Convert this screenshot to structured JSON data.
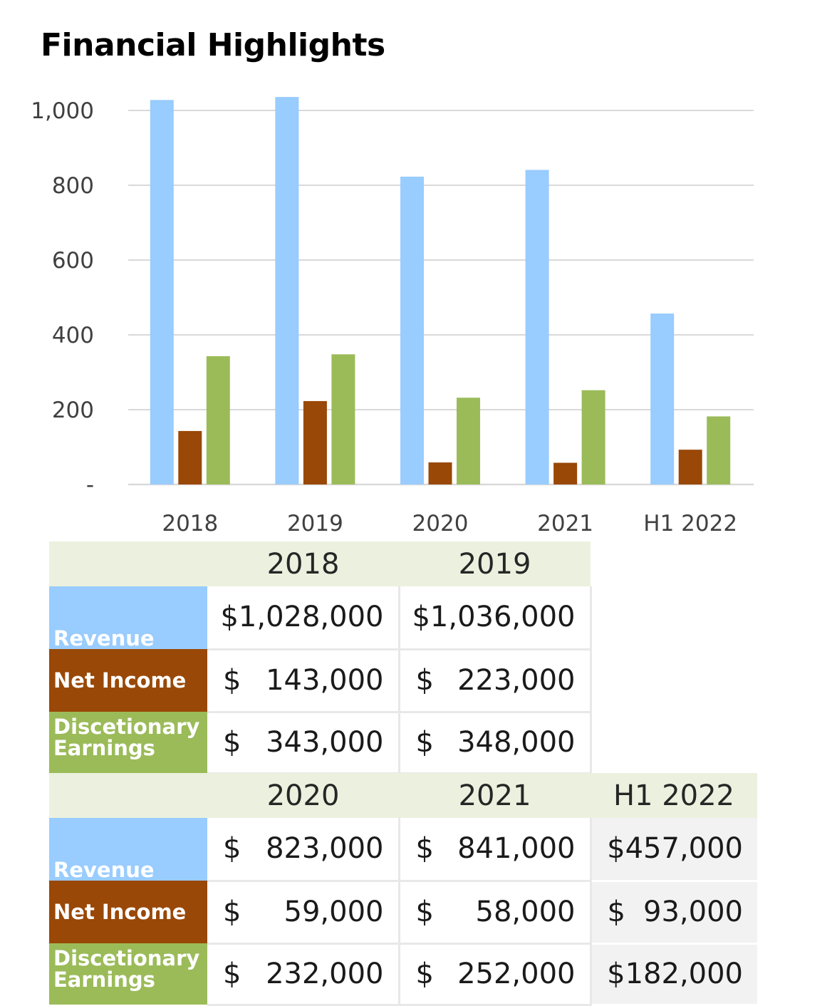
{
  "title": "Financial Highlights",
  "colors": {
    "revenue": "#99ccff",
    "net_income": "#994807",
    "disc_earnings": "#9bbb59",
    "grid": "#d9d9d9"
  },
  "chart_data": {
    "type": "bar",
    "title": "Financial Highlights",
    "categories": [
      "2018",
      "2019",
      "2020",
      "2021",
      "H1 2022"
    ],
    "series": [
      {
        "values": [
          1028,
          1036,
          823,
          841,
          457
        ]
      },
      {
        "values": [
          143,
          223,
          59,
          58,
          93
        ]
      },
      {
        "values": [
          343,
          348,
          232,
          252,
          182
        ]
      }
    ],
    "yticks": [
      "-",
      "200",
      "400",
      "600",
      "800",
      "1,000"
    ],
    "ylim": [
      0,
      1000
    ],
    "grid": true,
    "legend": "none"
  },
  "table1": {
    "years": [
      "2018",
      "2019"
    ],
    "rows": [
      {
        "label": "Revenue",
        "cells": [
          {
            "cur": "",
            "num": "$1,028,000"
          },
          {
            "cur": "",
            "num": "$1,036,000"
          }
        ]
      },
      {
        "label": "Net Income",
        "cells": [
          {
            "cur": "$",
            "num": "143,000"
          },
          {
            "cur": "$",
            "num": "223,000"
          }
        ]
      },
      {
        "label": "Discetionary Earnings",
        "cells": [
          {
            "cur": "$",
            "num": "343,000"
          },
          {
            "cur": "$",
            "num": "348,000"
          }
        ]
      }
    ]
  },
  "table2": {
    "years": [
      "2020",
      "2021",
      "H1 2022"
    ],
    "rows": [
      {
        "label": "Revenue",
        "cells": [
          {
            "cur": "$",
            "num": "823,000"
          },
          {
            "cur": "$",
            "num": "841,000"
          },
          {
            "cur": "",
            "num": "$457,000"
          }
        ]
      },
      {
        "label": "Net Income",
        "cells": [
          {
            "cur": "$",
            "num": "59,000"
          },
          {
            "cur": "$",
            "num": "58,000"
          },
          {
            "cur": "$",
            "num": "93,000"
          }
        ]
      },
      {
        "label": "Discetionary Earnings",
        "cells": [
          {
            "cur": "$",
            "num": "232,000"
          },
          {
            "cur": "$",
            "num": "252,000"
          },
          {
            "cur": "",
            "num": "$182,000"
          }
        ]
      }
    ]
  }
}
